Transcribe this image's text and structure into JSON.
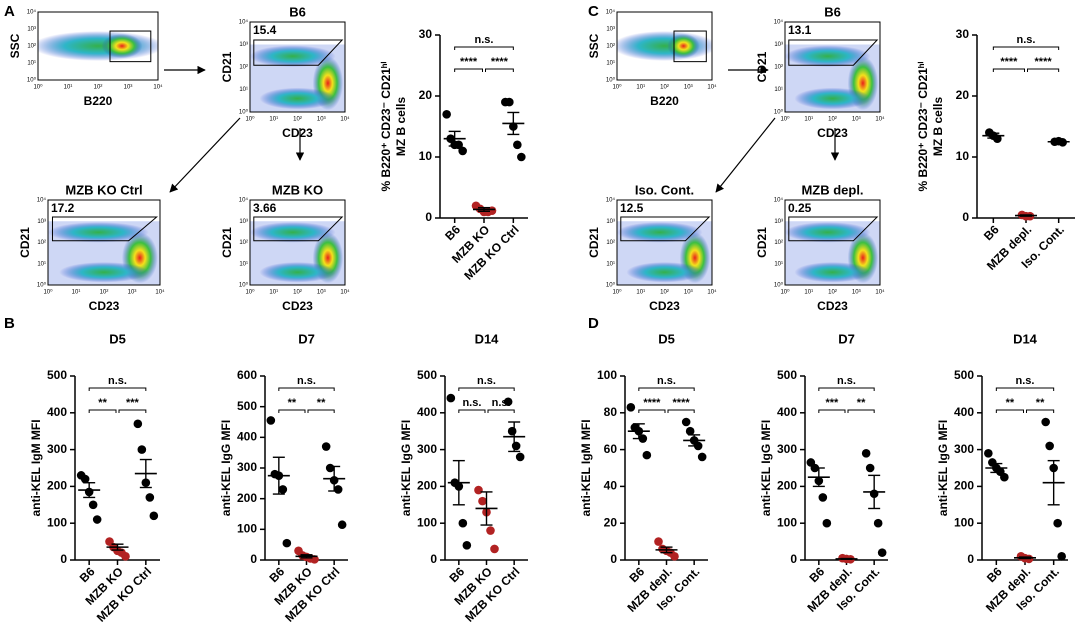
{
  "panel_labels": [
    "A",
    "B",
    "C",
    "D"
  ],
  "flow_tick_labels": [
    "10⁰",
    "10¹",
    "10²",
    "10³",
    "10⁴"
  ],
  "flow_plots": [
    {
      "xlabel": "B220",
      "ylabel": "SSC"
    },
    {
      "title": "B6",
      "gate_value": "15.4",
      "xlabel": "CD23",
      "ylabel": "CD21"
    },
    {
      "title": "MZB KO Ctrl",
      "gate_value": "17.2",
      "xlabel": "CD23",
      "ylabel": "CD21"
    },
    {
      "title": "MZB KO",
      "gate_value": "3.66",
      "xlabel": "CD23",
      "ylabel": "CD21"
    },
    {
      "xlabel": "B220",
      "ylabel": "SSC"
    },
    {
      "title": "B6",
      "gate_value": "13.1",
      "xlabel": "CD23",
      "ylabel": "CD21"
    },
    {
      "title": "Iso. Cont.",
      "gate_value": "12.5",
      "xlabel": "CD23",
      "ylabel": "CD21"
    },
    {
      "title": "MZB depl.",
      "gate_value": "0.25",
      "xlabel": "CD23",
      "ylabel": "CD21"
    }
  ],
  "chart_data": [
    {
      "type": "dot",
      "ylabel": [
        "% B220⁺ CD23⁻ CD21ʰⁱ",
        "MZ B cells"
      ],
      "categories": [
        "B6",
        "MZB KO",
        "MZB KO Ctrl"
      ],
      "colors": [
        "#000000",
        "#b22222",
        "#000000"
      ],
      "values": [
        [
          17,
          13,
          12,
          12,
          11
        ],
        [
          2,
          1.5,
          1,
          1,
          1.2
        ],
        [
          19,
          19,
          15,
          12,
          10
        ]
      ],
      "means": [
        13,
        1.4,
        15.5
      ],
      "sems": [
        1.2,
        0.3,
        1.8
      ],
      "ylim": [
        0,
        30
      ],
      "yticks": [
        0,
        10,
        20,
        30
      ],
      "significance": [
        "n.s.",
        "****",
        "****"
      ]
    },
    {
      "type": "dot",
      "ylabel": [
        "% B220⁺ CD23⁻ CD21ʰⁱ",
        "MZ B cells"
      ],
      "categories": [
        "B6",
        "MZB depl.",
        "Iso. Cont."
      ],
      "colors": [
        "#000000",
        "#b22222",
        "#000000"
      ],
      "values": [
        [
          14,
          13.5,
          13
        ],
        [
          0.5,
          0.3,
          0.3
        ],
        [
          12.5,
          12.6,
          12.4
        ]
      ],
      "means": [
        13.5,
        0.4,
        12.5
      ],
      "sems": [
        0.4,
        0.1,
        0.2
      ],
      "ylim": [
        0,
        30
      ],
      "yticks": [
        0,
        10,
        20,
        30
      ],
      "significance": [
        "n.s.",
        "****",
        "****"
      ]
    },
    {
      "type": "dot",
      "title": "D5",
      "ylabel": [
        "anti-KEL IgM MFI"
      ],
      "categories": [
        "B6",
        "MZB KO",
        "MZB KO Ctrl"
      ],
      "colors": [
        "#000000",
        "#b22222",
        "#000000"
      ],
      "values": [
        [
          230,
          220,
          185,
          150,
          110
        ],
        [
          50,
          35,
          25,
          20,
          10
        ],
        [
          370,
          300,
          210,
          170,
          120
        ]
      ],
      "means": [
        190,
        35,
        235
      ],
      "sems": [
        20,
        8,
        38
      ],
      "ylim": [
        0,
        500
      ],
      "yticks": [
        0,
        100,
        200,
        300,
        400,
        500
      ],
      "significance": [
        "n.s.",
        "**",
        "***"
      ]
    },
    {
      "type": "dot",
      "title": "D7",
      "ylabel": [
        "anti-KEL IgG MFI"
      ],
      "categories": [
        "B6",
        "MZB KO",
        "MZB KO Ctrl"
      ],
      "colors": [
        "#000000",
        "#b22222",
        "#000000"
      ],
      "values": [
        [
          455,
          280,
          275,
          230,
          55
        ],
        [
          30,
          15,
          10,
          5,
          2
        ],
        [
          370,
          300,
          260,
          230,
          115
        ]
      ],
      "means": [
        275,
        12,
        265
      ],
      "sems": [
        60,
        5,
        40
      ],
      "ylim": [
        0,
        600
      ],
      "yticks": [
        0,
        100,
        200,
        300,
        400,
        500,
        600
      ],
      "significance": [
        "n.s.",
        "**",
        "**"
      ]
    },
    {
      "type": "dot",
      "title": "D14",
      "ylabel": [
        "anti-KEL IgG MFI"
      ],
      "categories": [
        "B6",
        "MZB KO",
        "MZB KO Ctrl"
      ],
      "colors": [
        "#000000",
        "#b22222",
        "#000000"
      ],
      "values": [
        [
          440,
          210,
          200,
          100,
          40
        ],
        [
          190,
          160,
          130,
          80,
          30
        ],
        [
          430,
          350,
          310,
          280
        ]
      ],
      "means": [
        210,
        140,
        335
      ],
      "sems": [
        60,
        45,
        40
      ],
      "ylim": [
        0,
        500
      ],
      "yticks": [
        0,
        100,
        200,
        300,
        400,
        500
      ],
      "significance": [
        "n.s.",
        "n.s.",
        "n.s."
      ]
    },
    {
      "type": "dot",
      "title": "D5",
      "ylabel": [
        "anti-KEL IgM MFI"
      ],
      "categories": [
        "B6",
        "MZB depl.",
        "Iso. Cont."
      ],
      "colors": [
        "#000000",
        "#b22222",
        "#000000"
      ],
      "values": [
        [
          83,
          72,
          70,
          66,
          57
        ],
        [
          10,
          6,
          5,
          4,
          2
        ],
        [
          75,
          70,
          65,
          62,
          56
        ]
      ],
      "means": [
        70,
        5.5,
        65
      ],
      "sems": [
        4,
        1.5,
        3
      ],
      "ylim": [
        0,
        100
      ],
      "yticks": [
        0,
        20,
        40,
        60,
        80,
        100
      ],
      "significance": [
        "n.s.",
        "****",
        "****"
      ]
    },
    {
      "type": "dot",
      "title": "D7",
      "ylabel": [
        "anti-KEL IgG MFI"
      ],
      "categories": [
        "B6",
        "MZB depl.",
        "Iso. Cont."
      ],
      "colors": [
        "#000000",
        "#b22222",
        "#000000"
      ],
      "values": [
        [
          265,
          250,
          215,
          170,
          100
        ],
        [
          5,
          3,
          2
        ],
        [
          290,
          250,
          180,
          100,
          20
        ]
      ],
      "means": [
        225,
        3,
        185
      ],
      "sems": [
        25,
        1,
        45
      ],
      "ylim": [
        0,
        500
      ],
      "yticks": [
        0,
        100,
        200,
        300,
        400,
        500
      ],
      "significance": [
        "n.s.",
        "***",
        "**"
      ]
    },
    {
      "type": "dot",
      "title": "D14",
      "ylabel": [
        "anti-KEL IgG MFI"
      ],
      "categories": [
        "B6",
        "MZB depl.",
        "Iso. Cont."
      ],
      "colors": [
        "#000000",
        "#b22222",
        "#000000"
      ],
      "values": [
        [
          290,
          265,
          250,
          240,
          225
        ],
        [
          10,
          5,
          3
        ],
        [
          375,
          310,
          250,
          100,
          10
        ]
      ],
      "means": [
        250,
        6,
        210
      ],
      "sems": [
        12,
        2,
        60
      ],
      "ylim": [
        0,
        500
      ],
      "yticks": [
        0,
        100,
        200,
        300,
        400,
        500
      ],
      "significance": [
        "n.s.",
        "**",
        "**"
      ]
    }
  ]
}
